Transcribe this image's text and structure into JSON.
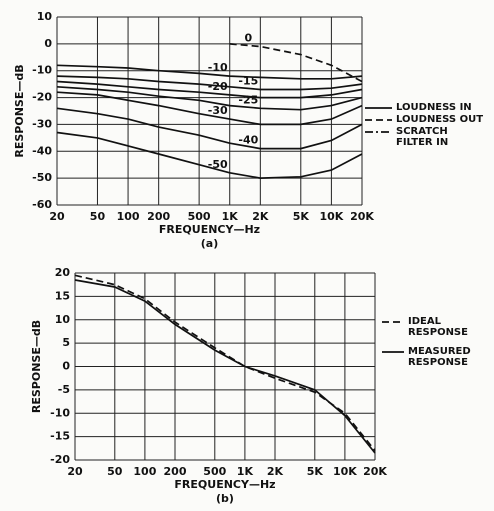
{
  "chart_data": [
    {
      "type": "line",
      "caption": "(a)",
      "xlabel": "FREQUENCY—Hz",
      "ylabel": "RESPONSE—dB",
      "xscale": "log",
      "grid": true,
      "color": "#111111",
      "x": [
        20,
        50,
        100,
        200,
        500,
        1000,
        2000,
        5000,
        10000,
        20000
      ],
      "xlim": [
        20,
        20000
      ],
      "xticks": [
        20,
        50,
        100,
        200,
        500,
        {
          "value": 1000,
          "label": "1K"
        },
        {
          "value": 2000,
          "label": "2K"
        },
        {
          "value": 5000,
          "label": "5K"
        },
        {
          "value": 10000,
          "label": "10K"
        },
        {
          "value": 20000,
          "label": "20K"
        }
      ],
      "ylim": [
        -60,
        10
      ],
      "yticks": [
        -60,
        -50,
        -40,
        -30,
        -20,
        -10,
        0,
        10
      ],
      "series": [
        {
          "name": "0",
          "dash": "dashed",
          "values": [
            null,
            null,
            null,
            null,
            null,
            0,
            -1,
            -4,
            -8,
            -14
          ]
        },
        {
          "name": "-10",
          "dash": "solid",
          "values": [
            -8,
            -8.5,
            -9,
            -10,
            -11,
            -12,
            -12.5,
            -13,
            -13,
            -12
          ]
        },
        {
          "name": "-15",
          "dash": "solid",
          "values": [
            -12,
            -12.5,
            -13,
            -14,
            -15,
            -16,
            -17,
            -17,
            -16.5,
            -15
          ]
        },
        {
          "name": "-20",
          "dash": "solid",
          "values": [
            -14,
            -15,
            -16,
            -17,
            -18,
            -19,
            -20,
            -20,
            -19,
            -17
          ]
        },
        {
          "name": "-25",
          "dash": "solid",
          "values": [
            -16,
            -17,
            -18,
            -19.5,
            -21,
            -23,
            -24,
            -24.5,
            -23,
            -20
          ]
        },
        {
          "name": "-30",
          "dash": "solid",
          "values": [
            -18,
            -19,
            -21,
            -23,
            -26,
            -28,
            -30,
            -30,
            -28,
            -23
          ]
        },
        {
          "name": "-40",
          "dash": "solid",
          "values": [
            -24,
            -26,
            -28,
            -31,
            -34,
            -37,
            -39,
            -39,
            -36,
            -30
          ]
        },
        {
          "name": "-50",
          "dash": "solid",
          "values": [
            -33,
            -35,
            -38,
            -41,
            -45,
            -48,
            -50,
            -49.5,
            -47,
            -41
          ]
        }
      ],
      "legend": [
        {
          "label": "LOUDNESS IN",
          "dash": "solid"
        },
        {
          "label": "LOUDNESS OUT",
          "dash": "dashed"
        },
        {
          "label": "SCRATCH FILTER IN",
          "dash": "dashdot"
        }
      ]
    },
    {
      "type": "line",
      "caption": "(b)",
      "xlabel": "FREQUENCY—Hz",
      "ylabel": "RESPONSE—dB",
      "xscale": "log",
      "grid": true,
      "color": "#111111",
      "x": [
        20,
        50,
        100,
        200,
        500,
        1000,
        2000,
        5000,
        10000,
        20000
      ],
      "xlim": [
        20,
        20000
      ],
      "xticks": [
        20,
        50,
        100,
        200,
        500,
        {
          "value": 1000,
          "label": "1K"
        },
        {
          "value": 2000,
          "label": "2K"
        },
        {
          "value": 5000,
          "label": "5K"
        },
        {
          "value": 10000,
          "label": "10K"
        },
        {
          "value": 20000,
          "label": "20K"
        }
      ],
      "ylim": [
        -20,
        20
      ],
      "yticks": [
        -20,
        -15,
        -10,
        -5,
        0,
        5,
        10,
        15,
        20
      ],
      "series": [
        {
          "name": "IDEAL RESPONSE",
          "dash": "dashed",
          "values": [
            19.5,
            17.5,
            14.5,
            9.5,
            4,
            0,
            -2.5,
            -5.5,
            -10,
            -18
          ]
        },
        {
          "name": "MEASURED RESPONSE",
          "dash": "solid",
          "values": [
            18.5,
            17,
            14,
            9,
            3.5,
            0,
            -2,
            -5,
            -10.5,
            -18.5
          ]
        }
      ]
    }
  ]
}
